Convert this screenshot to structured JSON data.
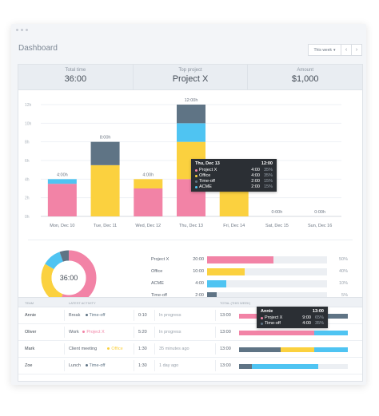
{
  "header": {
    "title": "Dashboard",
    "range_label": "This week",
    "prev": "‹",
    "next": "›"
  },
  "stats": [
    {
      "label": "Total time",
      "value": "36:00"
    },
    {
      "label": "Top project",
      "value": "Project X"
    },
    {
      "label": "Amount",
      "value": "$1,000"
    }
  ],
  "colors": {
    "project_x": "#f283a6",
    "office": "#fbd13f",
    "acme": "#4fc4f2",
    "time_off": "#5f7485"
  },
  "chart_data": {
    "type": "bar",
    "stacked": true,
    "categories": [
      "Mon, Dec 10",
      "Tue, Dec 11",
      "Wed, Dec 12",
      "Thu, Dec 13",
      "Fri, Dec 14",
      "Sat, Dec 15",
      "Sun, Dec 16"
    ],
    "total_labels": [
      "4:00h",
      "8:00h",
      "4:00h",
      "12:00h",
      "",
      "0:00h",
      "0:00h"
    ],
    "yticks": [
      "0h",
      "2h",
      "4h",
      "6h",
      "8h",
      "10h",
      "12h"
    ],
    "ylim": [
      0,
      12
    ],
    "series": [
      {
        "name": "Project X",
        "values": [
          3.5,
          0,
          3,
          4,
          0,
          0,
          0
        ]
      },
      {
        "name": "Office",
        "values": [
          0,
          5.5,
          1,
          4,
          4,
          0,
          0
        ]
      },
      {
        "name": "ACME",
        "values": [
          0.5,
          0,
          0,
          2,
          0,
          0,
          0
        ]
      },
      {
        "name": "Time-off",
        "values": [
          0,
          2.5,
          0,
          2,
          0,
          0,
          0
        ]
      }
    ]
  },
  "tooltip": {
    "title": "Thu, Dec 13",
    "total": "12:00",
    "rows": [
      {
        "name": "Project X",
        "time": "4:00",
        "pct": "35%"
      },
      {
        "name": "Office",
        "time": "4:00",
        "pct": "35%"
      },
      {
        "name": "Time-off",
        "time": "2:00",
        "pct": "15%"
      },
      {
        "name": "ACME",
        "time": "2:00",
        "pct": "15%"
      }
    ]
  },
  "donut": {
    "center": "36:00",
    "slices": [
      {
        "name": "Project X",
        "value": 20
      },
      {
        "name": "Office",
        "value": 10
      },
      {
        "name": "ACME",
        "value": 4
      },
      {
        "name": "Time-off",
        "value": 2
      }
    ]
  },
  "projects": [
    {
      "name": "Project X",
      "time": "20:00",
      "pct": "50%",
      "fraction": 0.55
    },
    {
      "name": "Office",
      "time": "10:00",
      "pct": "40%",
      "fraction": 0.31
    },
    {
      "name": "ACME",
      "time": "4:00",
      "pct": "10%",
      "fraction": 0.16
    },
    {
      "name": "Time-off",
      "time": "2:00",
      "pct": "5%",
      "fraction": 0.08
    }
  ],
  "team": {
    "headers": {
      "team": "TEAM",
      "latest": "LATEST ACTIVITY",
      "total": "TOTAL (THIS WEEK)"
    },
    "rows": [
      {
        "name": "Annie",
        "activity": "Break",
        "project": "Time-off",
        "duration": "0:10",
        "status": "In progress",
        "total": "13:00",
        "segments": [
          {
            "c": "project_x",
            "v": 9
          },
          {
            "c": "time_off",
            "v": 4
          }
        ]
      },
      {
        "name": "Oliver",
        "activity": "Work",
        "project": "Project X",
        "duration": "5:20",
        "status": "In progress",
        "total": "13:00",
        "segments": [
          {
            "c": "project_x",
            "v": 9
          },
          {
            "c": "acme",
            "v": 4
          }
        ]
      },
      {
        "name": "Mark",
        "activity": "Client meeting",
        "project": "Office",
        "duration": "1:30",
        "status": "35 minutes ago",
        "total": "13:00",
        "segments": [
          {
            "c": "time_off",
            "v": 5
          },
          {
            "c": "office",
            "v": 4
          },
          {
            "c": "acme",
            "v": 4
          }
        ]
      },
      {
        "name": "Zoe",
        "activity": "Lunch",
        "project": "Time-off",
        "duration": "1:30",
        "status": "1 day ago",
        "total": "13:00",
        "segments": [
          {
            "c": "time_off",
            "v": 1.5
          },
          {
            "c": "acme",
            "v": 8
          },
          {
            "c": "empty",
            "v": 3.5
          }
        ]
      }
    ],
    "tooltip": {
      "title": "Annie",
      "total": "13:00",
      "rows": [
        {
          "name": "Project X",
          "time": "9:00",
          "pct": "65%"
        },
        {
          "name": "Time-off",
          "time": "4:00",
          "pct": "35%"
        }
      ]
    }
  }
}
